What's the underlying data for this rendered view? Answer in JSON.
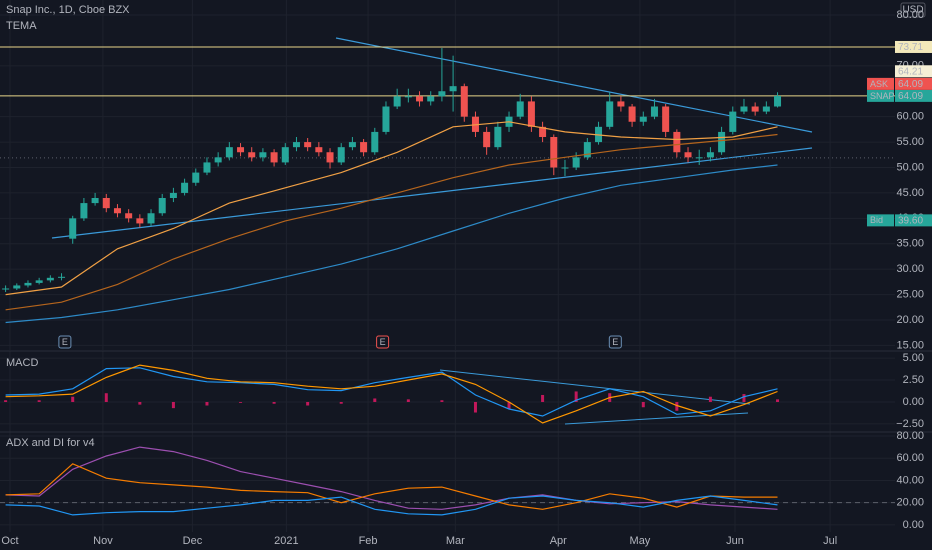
{
  "chart_data": [
    {
      "type": "candlestick",
      "title": "Snap Inc., 1D, Cboe BZX",
      "subtitle": "TEMA",
      "currency": "USD",
      "up_color": "#26a69a",
      "down_color": "#ef5350",
      "x": [
        0,
        1,
        2,
        3,
        4,
        5,
        6,
        7,
        8,
        9,
        10,
        11,
        12,
        13,
        14,
        15,
        16,
        17,
        18,
        19,
        20,
        21,
        22,
        23,
        24,
        25,
        26,
        27,
        28,
        29,
        30,
        31,
        32,
        33,
        34,
        35,
        36,
        37,
        38,
        39,
        40,
        41,
        42,
        43,
        44,
        45,
        46,
        47,
        48,
        49,
        50,
        51,
        52,
        53,
        54,
        55,
        56,
        57,
        58,
        59,
        60,
        61,
        62,
        63,
        64,
        65,
        66,
        67,
        68,
        69
      ],
      "open": [
        26,
        26.2,
        26.8,
        27.3,
        27.8,
        28.3,
        36,
        40,
        43,
        44,
        42,
        41,
        40,
        39,
        41,
        44,
        45,
        47,
        49,
        51,
        52,
        54,
        53,
        52,
        53,
        51,
        54,
        55,
        54,
        53,
        51,
        54,
        55,
        53,
        57,
        62,
        64,
        64,
        63,
        64,
        65,
        66,
        60,
        57,
        54,
        58,
        60,
        63,
        58,
        56,
        50,
        50,
        52,
        55,
        58,
        63,
        62,
        59,
        60,
        62,
        57,
        53,
        52,
        52,
        53,
        57,
        61,
        62,
        61,
        62
      ],
      "high": [
        26.8,
        27.2,
        27.8,
        28.3,
        28.8,
        29.2,
        40.5,
        44,
        45,
        44.8,
        42.8,
        41.8,
        40.8,
        41.8,
        44.8,
        46,
        47.8,
        49.8,
        52,
        53,
        55,
        54.8,
        54,
        53.8,
        53.6,
        54.8,
        56,
        55.8,
        55,
        53.8,
        54.8,
        56,
        55.6,
        57.8,
        63,
        65.5,
        65.5,
        65,
        65,
        73.5,
        72,
        66.5,
        61,
        58,
        59,
        61,
        64.5,
        64,
        59,
        56.5,
        51.5,
        53,
        55.8,
        59,
        64.8,
        64,
        62.5,
        61,
        63.5,
        62.5,
        57.5,
        54,
        53.5,
        54,
        58,
        62,
        63.5,
        62.8,
        63,
        64.8
      ],
      "low": [
        25.5,
        25.9,
        26.4,
        27,
        27.4,
        27.8,
        35,
        39.5,
        42.5,
        41.2,
        40.2,
        39.2,
        38.2,
        38.5,
        40.5,
        43.2,
        44.5,
        46.4,
        48.5,
        50.2,
        51.4,
        52.2,
        51.2,
        51.2,
        50.2,
        50.5,
        53.2,
        53.2,
        52.2,
        49.8,
        50.5,
        53.4,
        52.2,
        52.5,
        56.5,
        61.5,
        62.8,
        62,
        62.2,
        63,
        61,
        59,
        56,
        52.5,
        53.5,
        57,
        59.5,
        57,
        55,
        48.5,
        48.3,
        49.5,
        51.5,
        54.5,
        57.5,
        61,
        58,
        58.2,
        59.5,
        56,
        52,
        51,
        50.5,
        51.2,
        52.5,
        56.5,
        60.5,
        60.2,
        60.5,
        61.8
      ],
      "close": [
        26.2,
        26.8,
        27.3,
        27.8,
        28.3,
        28.5,
        40,
        43,
        44,
        42,
        41,
        40,
        39,
        41,
        44,
        45,
        47,
        49,
        51,
        52,
        54,
        53,
        52,
        53,
        51,
        54,
        55,
        54,
        53,
        51,
        54,
        55,
        53,
        57,
        62,
        64,
        64,
        63,
        64,
        65,
        66,
        60,
        57,
        54,
        58,
        60,
        63,
        58,
        56,
        50,
        50,
        52,
        55,
        58,
        63,
        62,
        59,
        60,
        62,
        57,
        53,
        52,
        52,
        53,
        57,
        61,
        62,
        61,
        62,
        64.09
      ],
      "overlays": [
        {
          "color": "#f0a045",
          "x": [
            0,
            5,
            10,
            15,
            20,
            25,
            30,
            35,
            40,
            45,
            50,
            55,
            60,
            65,
            69
          ],
          "values": [
            25,
            26.5,
            34,
            38,
            43,
            46,
            49,
            53,
            58,
            59,
            57,
            56,
            55.5,
            56,
            58
          ]
        },
        {
          "color": "#b5651d",
          "x": [
            0,
            5,
            10,
            15,
            20,
            25,
            30,
            35,
            40,
            45,
            50,
            55,
            60,
            65,
            69
          ],
          "values": [
            22,
            23.5,
            27,
            32,
            36,
            39.5,
            42,
            45,
            48,
            50.5,
            52,
            53.5,
            54.5,
            55.5,
            56.5
          ]
        },
        {
          "color": "#2d8ac7",
          "x": [
            0,
            5,
            10,
            15,
            20,
            25,
            30,
            35,
            40,
            45,
            50,
            55,
            60,
            65,
            69
          ],
          "values": [
            19.5,
            20.5,
            22,
            24,
            26,
            28.5,
            31,
            34,
            37.5,
            41,
            44,
            46.5,
            48,
            49.5,
            50.5
          ]
        }
      ],
      "hlines": [
        {
          "value": 73.71,
          "color": "#e8d68a",
          "style": "solid"
        },
        {
          "value": 64.09,
          "color": "#e8d68a",
          "style": "solid"
        },
        {
          "value": 51.9,
          "color": "#5d606b",
          "style": "dotted"
        }
      ],
      "price_labels": [
        {
          "label": "73.71",
          "value": 73.71,
          "color": "#f3e9bb",
          "text_color": "#131722"
        },
        {
          "name": "SNAP",
          "label": "64.09",
          "value": 64.09,
          "color": "#26a69a",
          "text_color": "#ffffff"
        },
        {
          "name": "ASK",
          "label": "64.09",
          "value": 64.09,
          "color": "#ef5350",
          "text_color": "#ffffff"
        },
        {
          "label": "64.21",
          "value": 64.21,
          "color": "#f5efd6",
          "text_color": "#131722"
        },
        {
          "name": "Bid",
          "label": "39.60",
          "value": 39.6,
          "color": "#26a69a",
          "text_color": "#ffffff"
        }
      ],
      "annotations": [
        {
          "text": "E",
          "x": 5.3,
          "color": "#6b8fb5"
        },
        {
          "text": "E",
          "x": 33.7,
          "color": "#ef5350"
        },
        {
          "text": "E",
          "x": 54.5,
          "color": "#6b8fb5"
        }
      ],
      "xlim": [
        -0.5,
        79.5
      ],
      "xticks": [
        {
          "value": 0.39,
          "label": "Oct"
        },
        {
          "value": 8.7,
          "label": "Nov"
        },
        {
          "value": 16.7,
          "label": "Dec"
        },
        {
          "value": 25.1,
          "label": "2021"
        },
        {
          "value": 32.4,
          "label": "Feb"
        },
        {
          "value": 40.2,
          "label": "Mar"
        },
        {
          "value": 49.4,
          "label": "Apr"
        },
        {
          "value": 56.7,
          "label": "May"
        },
        {
          "value": 65.2,
          "label": "Jun"
        },
        {
          "value": 73.7,
          "label": "Jul"
        }
      ],
      "ylim": [
        14.1,
        82.95
      ],
      "yticks": [
        {
          "value": 80,
          "label": "80.00"
        },
        {
          "value": 70,
          "label": "70.00"
        },
        {
          "value": 60,
          "label": "60.00"
        },
        {
          "value": 55,
          "label": "55.00"
        },
        {
          "value": 50,
          "label": "50.00"
        },
        {
          "value": 45,
          "label": "45.00"
        },
        {
          "value": 40,
          "label": "40.00"
        },
        {
          "value": 35,
          "label": "35.00"
        },
        {
          "value": 30,
          "label": "30.00"
        },
        {
          "value": 25,
          "label": "25.00"
        },
        {
          "value": 20,
          "label": "20.00"
        },
        {
          "value": 15,
          "label": "15.00"
        }
      ]
    },
    {
      "type": "macd",
      "title": "MACD",
      "histogram": {
        "color": "#c2185b",
        "x": [
          0,
          3,
          6,
          9,
          12,
          15,
          18,
          21,
          24,
          27,
          30,
          33,
          36,
          39,
          42,
          45,
          48,
          51,
          54,
          57,
          60,
          63,
          66,
          69
        ],
        "values": [
          0.2,
          0.2,
          0.6,
          1.0,
          -0.3,
          -0.7,
          -0.4,
          -0.1,
          -0.2,
          -0.4,
          -0.2,
          0.4,
          0.3,
          0.2,
          -1.2,
          -0.8,
          0.8,
          1.2,
          1.0,
          -0.6,
          -1.0,
          0.6,
          0.9,
          0.3
        ]
      },
      "series": [
        {
          "color": "#2196f3",
          "x": [
            0,
            3,
            6,
            9,
            12,
            15,
            18,
            21,
            24,
            27,
            30,
            33,
            36,
            39,
            42,
            45,
            48,
            51,
            54,
            57,
            60,
            63,
            66,
            69
          ],
          "values": [
            0.8,
            0.9,
            1.5,
            3.8,
            3.9,
            2.9,
            2.3,
            2.2,
            2.0,
            1.4,
            1.3,
            2.2,
            2.8,
            3.4,
            0.8,
            -0.8,
            -1.6,
            0.2,
            1.5,
            0.6,
            -1.4,
            -1.0,
            0.6,
            1.5
          ]
        },
        {
          "color": "#ff9800",
          "x": [
            0,
            3,
            6,
            9,
            12,
            15,
            18,
            21,
            24,
            27,
            30,
            33,
            36,
            39,
            42,
            45,
            48,
            51,
            54,
            57,
            60,
            63,
            66,
            69
          ],
          "values": [
            0.6,
            0.7,
            0.9,
            2.8,
            4.2,
            3.6,
            2.7,
            2.3,
            2.2,
            1.8,
            1.5,
            1.8,
            2.5,
            3.2,
            2.0,
            0.0,
            -2.4,
            -1.0,
            0.5,
            1.2,
            -0.4,
            -1.6,
            -0.3,
            1.2
          ]
        }
      ],
      "ylim": [
        -3.42,
        5.81
      ],
      "yticks": [
        {
          "value": 5,
          "label": "5.00"
        },
        {
          "value": 2.5,
          "label": "2.50"
        },
        {
          "value": 0,
          "label": "0.00"
        },
        {
          "value": -2.5,
          "label": "−2.50"
        }
      ]
    },
    {
      "type": "line",
      "title": "ADX and DI for v4",
      "series": [
        {
          "color": "#9c4fb0",
          "x": [
            0,
            3,
            6,
            9,
            12,
            15,
            18,
            21,
            24,
            27,
            30,
            33,
            36,
            39,
            42,
            45,
            48,
            51,
            54,
            57,
            60,
            63,
            66,
            69
          ],
          "values": [
            27,
            26,
            50,
            62,
            70,
            66,
            58,
            48,
            42,
            36,
            30,
            22,
            15,
            14,
            18,
            24,
            27,
            22,
            19,
            20,
            21,
            18,
            16,
            14
          ]
        },
        {
          "color": "#f57c00",
          "x": [
            0,
            3,
            6,
            9,
            12,
            15,
            18,
            21,
            24,
            27,
            30,
            33,
            36,
            39,
            42,
            45,
            48,
            51,
            54,
            57,
            60,
            63,
            66,
            69
          ],
          "values": [
            27,
            28,
            55,
            42,
            38,
            36,
            34,
            31,
            30,
            29,
            20,
            28,
            33,
            34,
            26,
            18,
            14,
            20,
            28,
            24,
            16,
            26,
            25,
            25
          ]
        },
        {
          "color": "#2196f3",
          "x": [
            0,
            3,
            6,
            9,
            12,
            15,
            18,
            21,
            24,
            27,
            30,
            33,
            36,
            39,
            42,
            45,
            48,
            51,
            54,
            57,
            60,
            63,
            66,
            69
          ],
          "values": [
            18,
            17,
            9,
            11,
            12,
            12,
            15,
            18,
            22,
            22,
            25,
            14,
            10,
            9,
            14,
            24,
            26,
            22,
            20,
            16,
            22,
            26,
            22,
            18
          ]
        }
      ],
      "hlines": [
        {
          "value": 20,
          "color": "#5d606b",
          "style": "dashed"
        }
      ],
      "ylim": [
        -6.4,
        83.6
      ],
      "yticks": [
        {
          "value": 80,
          "label": "80.00"
        },
        {
          "value": 60,
          "label": "60.00"
        },
        {
          "value": 40,
          "label": "40.00"
        },
        {
          "value": 20,
          "label": "20.00"
        },
        {
          "value": 0,
          "label": "0.00"
        }
      ]
    }
  ]
}
